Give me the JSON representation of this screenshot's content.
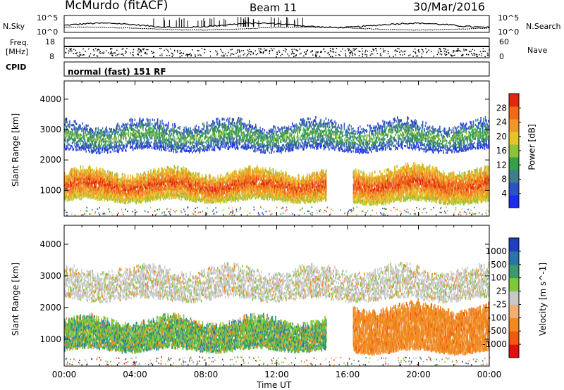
{
  "header": {
    "station": "McMurdo (fitACF)",
    "beam": "Beam 11",
    "date": "30/Mar/2016"
  },
  "top_panels": {
    "nsky_label": "N.Sky",
    "nsearch_label": "N.Search",
    "sky_ticks": [
      "10^5",
      "10^0"
    ],
    "search_ticks": [
      "10^5",
      "10^0"
    ],
    "freq_label_line1": "Freq.",
    "freq_label_line2": "[MHz]",
    "freq_ticks": [
      "18",
      "8"
    ],
    "nave_label": "Nave",
    "nave_ticks": [
      "60",
      "0"
    ],
    "cpid_label": "CPID",
    "cpid_value": "normal (fast) 151 RF"
  },
  "chart_data": [
    {
      "type": "heatmap",
      "title": "",
      "xlabel": "Time UT",
      "ylabel": "Slant Range [km]",
      "xlim": [
        "00:00",
        "24:00"
      ],
      "ylim": [
        150,
        4600
      ],
      "x_ticks": [
        "00:00",
        "04:00",
        "08:00",
        "12:00",
        "16:00",
        "20:00",
        "00:00"
      ],
      "y_ticks": [
        1000,
        2000,
        3000,
        4000
      ],
      "colorbar": {
        "label": "Power [dB]",
        "range": [
          0,
          32
        ],
        "ticks": [
          4,
          8,
          12,
          16,
          20,
          24,
          28
        ],
        "colors": [
          "#1b2bf0",
          "#2c52c4",
          "#3f7c8c",
          "#36a048",
          "#8fc23a",
          "#e4c62a",
          "#f0962a",
          "#f06a18",
          "#e02810"
        ]
      },
      "bands": [
        {
          "t_start": 0.0,
          "t_end": 14.8,
          "r_low": 600,
          "r_high": 1700,
          "mean_level": 24
        },
        {
          "t_start": 16.3,
          "t_end": 24.0,
          "r_low": 550,
          "r_high": 1800,
          "mean_level": 24
        },
        {
          "t_start": 0.0,
          "t_end": 24.0,
          "r_low": 2250,
          "r_high": 3300,
          "mean_level": 10
        }
      ]
    },
    {
      "type": "heatmap",
      "title": "",
      "xlabel": "Time UT",
      "ylabel": "Slant Range [km]",
      "xlim": [
        "00:00",
        "24:00"
      ],
      "ylim": [
        150,
        4600
      ],
      "x_ticks": [
        "00:00",
        "04:00",
        "08:00",
        "12:00",
        "16:00",
        "20:00",
        "00:00"
      ],
      "y_ticks": [
        1000,
        2000,
        3000,
        4000
      ],
      "colorbar": {
        "label": "Velocity [m s^-1]",
        "ticks": [
          1000,
          500,
          100,
          25,
          -25,
          -100,
          -500,
          -1000
        ],
        "colors": [
          "#1f3fbf",
          "#2c74a8",
          "#3a9a6a",
          "#7ec83a",
          "#c8c8c8",
          "#f0b070",
          "#f08a20",
          "#f05a10",
          "#e01010"
        ]
      },
      "bands": [
        {
          "t_start": 0.0,
          "t_end": 14.8,
          "r_low": 600,
          "r_high": 1700,
          "mean_velocity": 50
        },
        {
          "t_start": 16.3,
          "t_end": 24.0,
          "r_low": 550,
          "r_high": 2100,
          "mean_velocity": -200
        },
        {
          "t_start": 0.0,
          "t_end": 24.0,
          "r_low": 2200,
          "r_high": 3300,
          "mean_velocity": 0
        }
      ]
    }
  ]
}
